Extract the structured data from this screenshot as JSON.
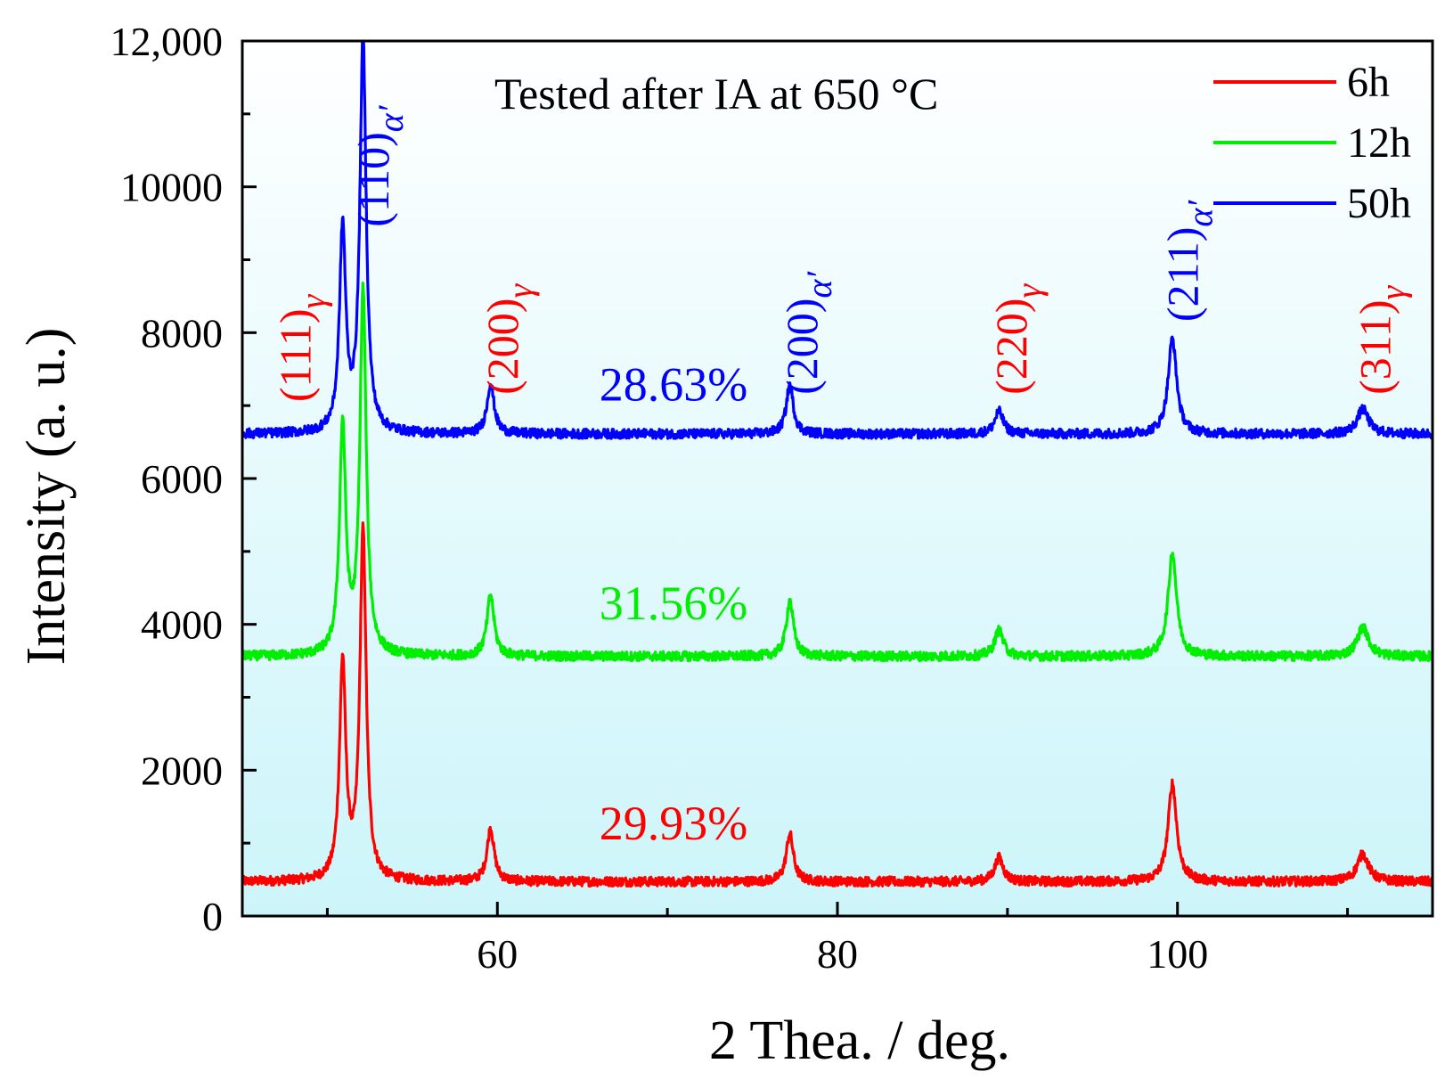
{
  "chart_data": {
    "type": "line",
    "title": "",
    "annotation": "Tested after IA at 650 °C",
    "xlabel": "2 Thea. / deg.",
    "ylabel": "Intensity (a. u.)",
    "xlim": [
      45,
      115
    ],
    "ylim": [
      0,
      12000
    ],
    "x_ticks": [
      60,
      80,
      100
    ],
    "x_minor_ticks": [
      50,
      70,
      90,
      110
    ],
    "y_ticks": [
      {
        "value": 0,
        "label": "0"
      },
      {
        "value": 2000,
        "label": "2000"
      },
      {
        "value": 4000,
        "label": "4000"
      },
      {
        "value": 6000,
        "label": "6000"
      },
      {
        "value": 8000,
        "label": "8000"
      },
      {
        "value": 10000,
        "label": "10000"
      },
      {
        "value": 12000,
        "label": "12,000"
      }
    ],
    "y_minor_ticks": [
      1000,
      3000,
      5000,
      7000,
      9000,
      11000
    ],
    "background_gradient": [
      "#ffffff",
      "#ccf5fa"
    ],
    "legend": {
      "placement": "top-right"
    },
    "series": [
      {
        "name": "6h",
        "color": "#ff0000",
        "baseline": 470,
        "pct_label": "29.93%",
        "pct_pos": [
          66,
          1050
        ],
        "peaks": [
          {
            "x": 50.9,
            "y": 3450,
            "w": 0.22
          },
          {
            "x": 52.1,
            "y": 5250,
            "w": 0.22
          },
          {
            "x": 59.6,
            "y": 1200,
            "w": 0.25
          },
          {
            "x": 77.2,
            "y": 1130,
            "w": 0.25
          },
          {
            "x": 89.5,
            "y": 800,
            "w": 0.3
          },
          {
            "x": 99.7,
            "y": 1820,
            "w": 0.3
          },
          {
            "x": 110.9,
            "y": 850,
            "w": 0.4
          }
        ]
      },
      {
        "name": "12h",
        "color": "#00ee00",
        "baseline": 3560,
        "pct_label": "31.56%",
        "pct_pos": [
          66,
          4070
        ],
        "peaks": [
          {
            "x": 50.9,
            "y": 6700,
            "w": 0.22
          },
          {
            "x": 52.1,
            "y": 8550,
            "w": 0.22
          },
          {
            "x": 59.6,
            "y": 4400,
            "w": 0.25
          },
          {
            "x": 77.2,
            "y": 4330,
            "w": 0.25
          },
          {
            "x": 89.5,
            "y": 3920,
            "w": 0.3
          },
          {
            "x": 99.7,
            "y": 4980,
            "w": 0.3
          },
          {
            "x": 110.9,
            "y": 3960,
            "w": 0.4
          }
        ]
      },
      {
        "name": "50h",
        "color": "#0000ff",
        "baseline": 6610,
        "pct_label": "28.63%",
        "pct_pos": [
          66,
          7070
        ],
        "peaks": [
          {
            "x": 50.9,
            "y": 9400,
            "w": 0.22
          },
          {
            "x": 52.1,
            "y": 12000,
            "w": 0.22
          },
          {
            "x": 59.6,
            "y": 7300,
            "w": 0.25
          },
          {
            "x": 77.2,
            "y": 7280,
            "w": 0.25
          },
          {
            "x": 89.5,
            "y": 6920,
            "w": 0.3
          },
          {
            "x": 99.7,
            "y": 7920,
            "w": 0.3
          },
          {
            "x": 110.9,
            "y": 6950,
            "w": 0.4
          }
        ]
      }
    ],
    "peak_labels": [
      {
        "main": "(111)",
        "sub": "γ",
        "color": "#ff0000",
        "x": 49.0,
        "y": 7050
      },
      {
        "main": "(110)",
        "sub": "α′",
        "color": "#0000ff",
        "x": 53.6,
        "y": 9450
      },
      {
        "main": "(200)",
        "sub": "γ",
        "color": "#ff0000",
        "x": 61.2,
        "y": 7150
      },
      {
        "main": "(200)",
        "sub": "α′",
        "color": "#0000ff",
        "x": 78.8,
        "y": 7150
      },
      {
        "main": "(220)",
        "sub": "γ",
        "color": "#ff0000",
        "x": 91.1,
        "y": 7150
      },
      {
        "main": "(211)",
        "sub": "α′",
        "color": "#0000ff",
        "x": 101.2,
        "y": 8150
      },
      {
        "main": "(311)",
        "sub": "γ",
        "color": "#ff0000",
        "x": 112.5,
        "y": 7150
      }
    ]
  }
}
